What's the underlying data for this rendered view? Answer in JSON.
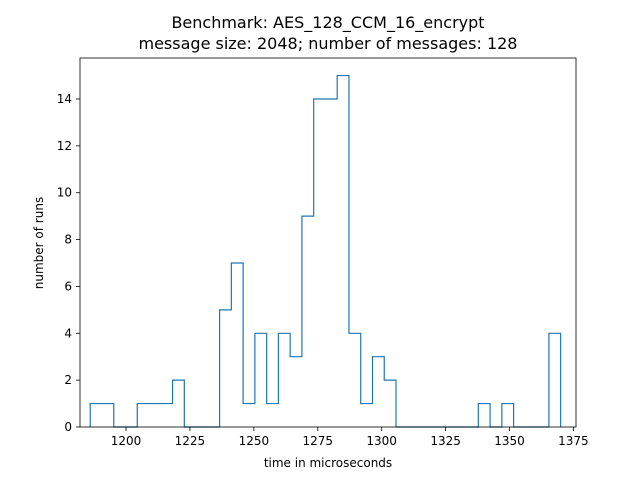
{
  "chart_data": {
    "type": "histogram",
    "title_line1": "Benchmark: AES_128_CCM_16_encrypt",
    "title_line2": "message size: 2048; number of messages: 128",
    "xlabel": "time in microseconds",
    "ylabel": "number of runs",
    "xlim": [
      1182,
      1376
    ],
    "ylim": [
      0,
      15.75
    ],
    "xticks": [
      1200,
      1225,
      1250,
      1275,
      1300,
      1325,
      1350,
      1375
    ],
    "yticks": [
      0,
      2,
      4,
      6,
      8,
      10,
      12,
      14
    ],
    "series_color": "#1f77b4",
    "bin_width": 4.6,
    "bins": [
      {
        "start": 1186.0,
        "count": 1
      },
      {
        "start": 1190.6,
        "count": 1
      },
      {
        "start": 1195.2,
        "count": 0
      },
      {
        "start": 1199.8,
        "count": 0
      },
      {
        "start": 1204.4,
        "count": 1
      },
      {
        "start": 1209.0,
        "count": 1
      },
      {
        "start": 1213.6,
        "count": 1
      },
      {
        "start": 1218.2,
        "count": 2
      },
      {
        "start": 1222.8,
        "count": 0
      },
      {
        "start": 1227.4,
        "count": 0
      },
      {
        "start": 1232.0,
        "count": 0
      },
      {
        "start": 1236.6,
        "count": 5
      },
      {
        "start": 1241.2,
        "count": 7
      },
      {
        "start": 1245.8,
        "count": 1
      },
      {
        "start": 1250.4,
        "count": 4
      },
      {
        "start": 1255.0,
        "count": 1
      },
      {
        "start": 1259.6,
        "count": 4
      },
      {
        "start": 1264.2,
        "count": 3
      },
      {
        "start": 1268.8,
        "count": 9
      },
      {
        "start": 1273.4,
        "count": 14
      },
      {
        "start": 1278.0,
        "count": 14
      },
      {
        "start": 1282.6,
        "count": 15
      },
      {
        "start": 1287.2,
        "count": 4
      },
      {
        "start": 1291.8,
        "count": 1
      },
      {
        "start": 1296.4,
        "count": 3
      },
      {
        "start": 1301.0,
        "count": 2
      },
      {
        "start": 1305.6,
        "count": 0
      },
      {
        "start": 1310.2,
        "count": 0
      },
      {
        "start": 1314.8,
        "count": 0
      },
      {
        "start": 1319.4,
        "count": 0
      },
      {
        "start": 1324.0,
        "count": 0
      },
      {
        "start": 1328.6,
        "count": 0
      },
      {
        "start": 1333.2,
        "count": 0
      },
      {
        "start": 1337.8,
        "count": 1
      },
      {
        "start": 1342.4,
        "count": 0
      },
      {
        "start": 1347.0,
        "count": 1
      },
      {
        "start": 1351.6,
        "count": 0
      },
      {
        "start": 1356.2,
        "count": 0
      },
      {
        "start": 1360.8,
        "count": 0
      },
      {
        "start": 1365.4,
        "count": 4
      }
    ]
  }
}
